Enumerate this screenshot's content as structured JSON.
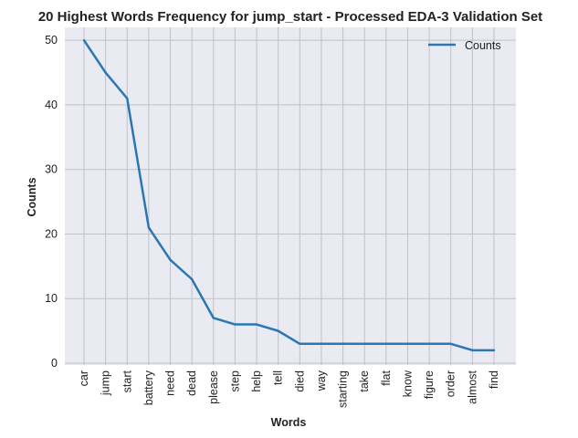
{
  "chart_data": {
    "type": "line",
    "title": "20 Highest Words Frequency for jump_start - Processed EDA-3 Validation Set",
    "xlabel": "Words",
    "ylabel": "Counts",
    "categories": [
      "car",
      "jump",
      "start",
      "battery",
      "need",
      "dead",
      "please",
      "step",
      "help",
      "tell",
      "died",
      "way",
      "starting",
      "take",
      "flat",
      "know",
      "figure",
      "order",
      "almost",
      "find"
    ],
    "series": [
      {
        "name": "Counts",
        "values": [
          50,
          45,
          41,
          21,
          16,
          13,
          7,
          6,
          6,
          5,
          3,
          3,
          3,
          3,
          3,
          3,
          3,
          3,
          2,
          2
        ]
      }
    ],
    "ylim": [
      0,
      52
    ],
    "yticks": [
      0,
      10,
      20,
      30,
      40,
      50
    ],
    "grid": true,
    "legend_position": "top-right",
    "colors": {
      "line": "#2a77b4",
      "plot_background": "#eaeaf2",
      "grid": "#c0c0c8"
    }
  }
}
